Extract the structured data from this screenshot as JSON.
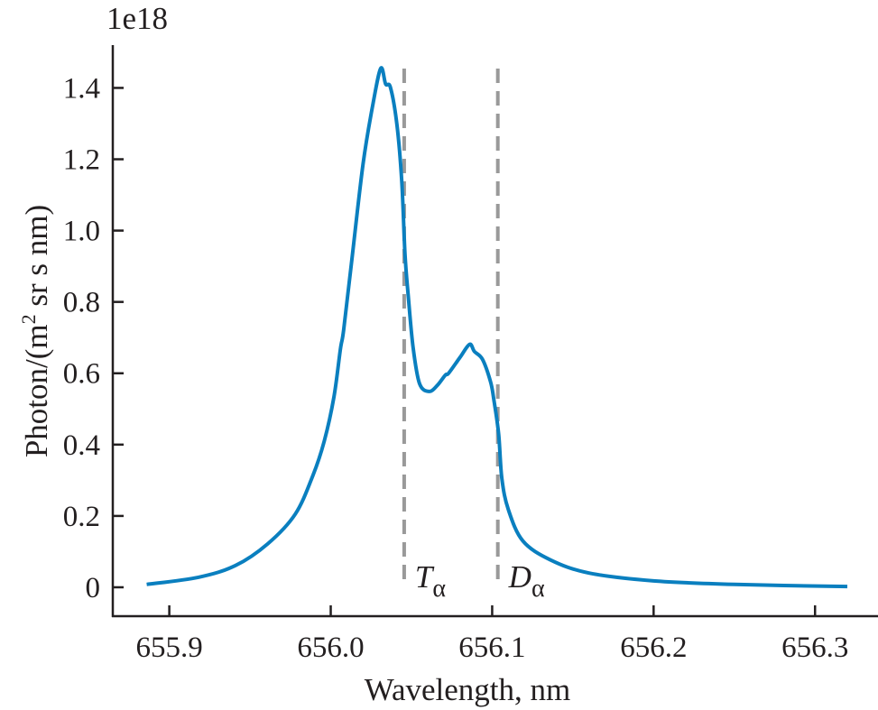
{
  "chart_data": {
    "type": "line",
    "title": "",
    "xlabel": "Wavelength, nm",
    "ylabel": "Photon/(m",
    "ylabel_sup": "2",
    "ylabel_rest": " sr s nm)",
    "y_multiplier": "1e18",
    "xlim": [
      655.865,
      656.339
    ],
    "ylim": [
      -0.081,
      1.52
    ],
    "xticks": [
      655.9,
      656.0,
      656.1,
      656.2,
      656.3
    ],
    "xtick_labels": [
      "655.9",
      "656.0",
      "656.1",
      "656.2",
      "656.3"
    ],
    "yticks": [
      0,
      0.2,
      0.4,
      0.6,
      0.8,
      1.0,
      1.2,
      1.4
    ],
    "ytick_labels": [
      "0",
      "0.2",
      "0.4",
      "0.6",
      "0.8",
      "1.0",
      "1.2",
      "1.4"
    ],
    "grid": false,
    "series": [
      {
        "color": "#0a7fbf",
        "x": [
          655.886,
          655.918,
          655.941,
          655.961,
          655.978,
          655.989,
          655.996,
          656.002,
          656.006,
          656.008,
          656.013,
          656.02,
          656.026,
          656.031,
          656.034,
          656.037,
          656.041,
          656.044,
          656.046,
          656.048,
          656.051,
          656.055,
          656.061,
          656.066,
          656.071,
          656.073,
          656.08,
          656.086,
          656.089,
          656.094,
          656.099,
          656.101,
          656.104,
          656.106,
          656.11,
          656.119,
          656.136,
          656.16,
          656.2,
          656.25,
          656.32
        ],
        "y": [
          0.008,
          0.028,
          0.061,
          0.122,
          0.205,
          0.314,
          0.41,
          0.534,
          0.668,
          0.721,
          0.915,
          1.186,
          1.351,
          1.455,
          1.411,
          1.401,
          1.297,
          1.138,
          0.934,
          0.818,
          0.673,
          0.571,
          0.549,
          0.566,
          0.595,
          0.6,
          0.644,
          0.681,
          0.661,
          0.639,
          0.576,
          0.527,
          0.43,
          0.305,
          0.218,
          0.13,
          0.077,
          0.04,
          0.018,
          0.008,
          0.002
        ]
      }
    ],
    "vlines": [
      {
        "x": 656.0455,
        "color": "#999999",
        "style": "dashed",
        "label": "T",
        "sub": "α"
      },
      {
        "x": 656.1035,
        "color": "#999999",
        "style": "dashed",
        "label": "D",
        "sub": "α"
      }
    ]
  }
}
